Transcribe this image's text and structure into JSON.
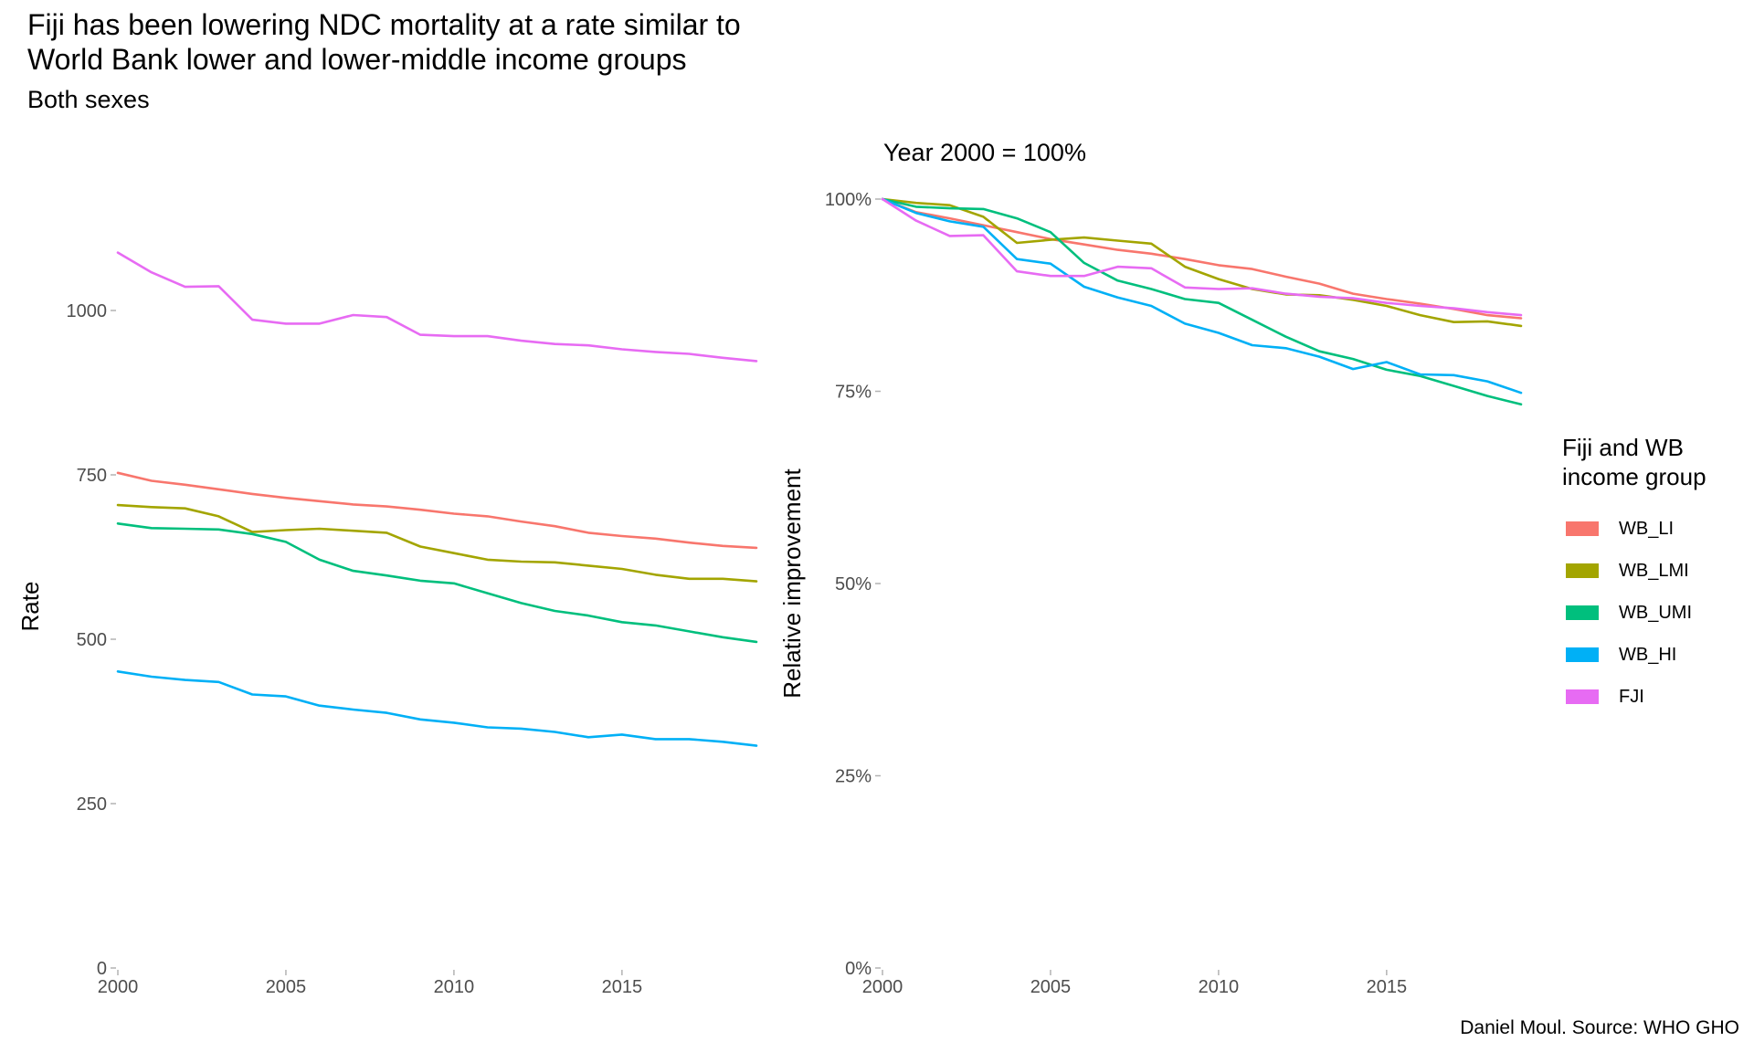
{
  "title": "Fiji has been lowering NDC mortality at a rate similar to\nWorld Bank lower and lower-middle income groups",
  "subtitle": "Both sexes",
  "caption": "Daniel Moul. Source: WHO GHO",
  "legend": {
    "title": "Fiji and WB\nincome group",
    "items": [
      {
        "name": "WB_LI",
        "color": "#F8766D"
      },
      {
        "name": "WB_LMI",
        "color": "#A3A500"
      },
      {
        "name": "WB_UMI",
        "color": "#00BF7D"
      },
      {
        "name": "WB_HI",
        "color": "#00B0F6"
      },
      {
        "name": "FJI",
        "color": "#E76BF3"
      }
    ]
  },
  "chart_data": [
    {
      "type": "line",
      "title": "",
      "subtitle": "Both sexes",
      "xlabel": "",
      "ylabel": "Rate",
      "xlim": [
        2000,
        2019
      ],
      "ylim": [
        0,
        1100
      ],
      "xticks": [
        2000,
        2005,
        2010,
        2015
      ],
      "yticks": [
        0,
        250,
        500,
        750,
        1000
      ],
      "ytick_labels": [
        "0",
        "250",
        "500",
        "750",
        "1000"
      ],
      "grid": false,
      "legend": "right",
      "x": [
        2000,
        2001,
        2002,
        2003,
        2004,
        2005,
        2006,
        2007,
        2008,
        2009,
        2010,
        2011,
        2012,
        2013,
        2014,
        2015,
        2016,
        2017,
        2018,
        2019
      ],
      "series": [
        {
          "name": "WB_LI",
          "color": "#F8766D",
          "values": [
            753,
            741,
            735,
            728,
            721,
            715,
            710,
            705,
            702,
            697,
            691,
            687,
            679,
            672,
            662,
            657,
            653,
            647,
            642,
            639
          ]
        },
        {
          "name": "WB_LMI",
          "color": "#A3A500",
          "values": [
            704,
            701,
            699,
            687,
            663,
            666,
            668,
            665,
            662,
            641,
            631,
            621,
            618,
            617,
            612,
            607,
            598,
            592,
            592,
            588
          ]
        },
        {
          "name": "WB_UMI",
          "color": "#00BF7D",
          "values": [
            676,
            669,
            668,
            667,
            660,
            648,
            621,
            604,
            597,
            589,
            585,
            570,
            555,
            543,
            536,
            526,
            521,
            512,
            503,
            496
          ]
        },
        {
          "name": "WB_HI",
          "color": "#00B0F6",
          "values": [
            451,
            443,
            438,
            435,
            416,
            413,
            399,
            393,
            388,
            378,
            373,
            366,
            364,
            359,
            351,
            355,
            348,
            348,
            344,
            338
          ]
        },
        {
          "name": "FJI",
          "color": "#E76BF3",
          "values": [
            1088,
            1058,
            1036,
            1037,
            986,
            980,
            980,
            993,
            990,
            963,
            961,
            961,
            954,
            949,
            947,
            941,
            937,
            934,
            928,
            923
          ]
        }
      ]
    },
    {
      "type": "line",
      "title": "",
      "subtitle": "Year 2000 = 100%",
      "xlabel": "",
      "ylabel": "Relative improvement",
      "xlim": [
        2000,
        2019
      ],
      "ylim": [
        0,
        1.0
      ],
      "xticks": [
        2000,
        2005,
        2010,
        2015
      ],
      "yticks": [
        0,
        0.25,
        0.5,
        0.75,
        1.0
      ],
      "ytick_labels": [
        "0%",
        "25%",
        "50%",
        "75%",
        "100%"
      ],
      "grid": false,
      "legend": "right",
      "x": [
        2000,
        2001,
        2002,
        2003,
        2004,
        2005,
        2006,
        2007,
        2008,
        2009,
        2010,
        2011,
        2012,
        2013,
        2014,
        2015,
        2016,
        2017,
        2018,
        2019
      ],
      "series": [
        {
          "name": "WB_LI",
          "color": "#F8766D",
          "values": [
            1.0,
            0.983,
            0.975,
            0.966,
            0.957,
            0.948,
            0.941,
            0.934,
            0.929,
            0.922,
            0.914,
            0.909,
            0.899,
            0.89,
            0.877,
            0.87,
            0.864,
            0.857,
            0.849,
            0.845
          ]
        },
        {
          "name": "WB_LMI",
          "color": "#A3A500",
          "values": [
            1.0,
            0.995,
            0.992,
            0.977,
            0.943,
            0.947,
            0.95,
            0.946,
            0.942,
            0.912,
            0.896,
            0.883,
            0.876,
            0.875,
            0.869,
            0.861,
            0.849,
            0.84,
            0.841,
            0.835
          ]
        },
        {
          "name": "WB_UMI",
          "color": "#00BF7D",
          "values": [
            1.0,
            0.99,
            0.988,
            0.987,
            0.975,
            0.957,
            0.917,
            0.894,
            0.883,
            0.87,
            0.865,
            0.843,
            0.821,
            0.802,
            0.792,
            0.778,
            0.77,
            0.757,
            0.744,
            0.733
          ]
        },
        {
          "name": "WB_HI",
          "color": "#00B0F6",
          "values": [
            1.0,
            0.982,
            0.971,
            0.964,
            0.922,
            0.916,
            0.886,
            0.872,
            0.861,
            0.838,
            0.826,
            0.81,
            0.806,
            0.795,
            0.779,
            0.788,
            0.772,
            0.771,
            0.763,
            0.748
          ]
        },
        {
          "name": "FJI",
          "color": "#E76BF3",
          "values": [
            1.0,
            0.972,
            0.952,
            0.953,
            0.906,
            0.9,
            0.9,
            0.912,
            0.91,
            0.885,
            0.883,
            0.884,
            0.877,
            0.873,
            0.871,
            0.865,
            0.861,
            0.858,
            0.853,
            0.849
          ]
        }
      ]
    }
  ]
}
